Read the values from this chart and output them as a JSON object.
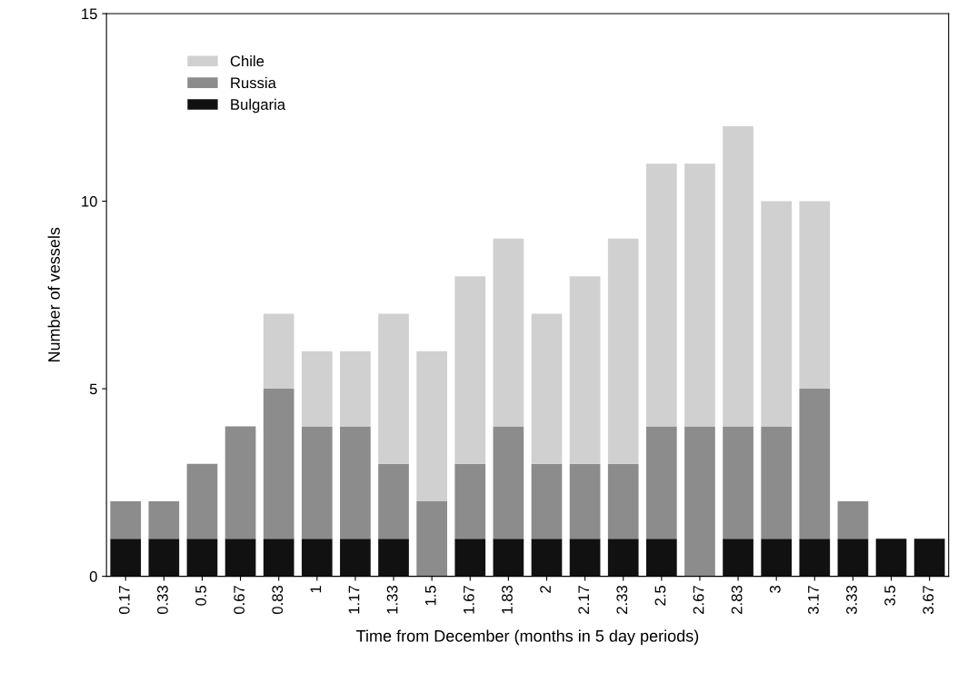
{
  "chart_data": {
    "type": "bar",
    "stacked": true,
    "xlabel": "Time from December (months in 5 day periods)",
    "ylabel": "Number of vessels",
    "categories": [
      "0.17",
      "0.33",
      "0.5",
      "0.67",
      "0.83",
      "1",
      "1.17",
      "1.33",
      "1.5",
      "1.67",
      "1.83",
      "2",
      "2.17",
      "2.33",
      "2.5",
      "2.67",
      "2.83",
      "3",
      "3.17",
      "3.33",
      "3.5",
      "3.67"
    ],
    "series": [
      {
        "name": "Bulgaria",
        "color": "#111111",
        "values": [
          1,
          1,
          1,
          1,
          1,
          1,
          1,
          1,
          0,
          1,
          1,
          1,
          1,
          1,
          1,
          0,
          1,
          1,
          1,
          1,
          1,
          1
        ]
      },
      {
        "name": "Russia",
        "color": "#8c8c8c",
        "values": [
          1,
          1,
          2,
          3,
          4,
          3,
          3,
          2,
          2,
          2,
          3,
          2,
          2,
          2,
          3,
          4,
          3,
          3,
          4,
          1,
          0,
          0
        ]
      },
      {
        "name": "Chile",
        "color": "#d0d0d0",
        "values": [
          0,
          0,
          0,
          0,
          2,
          2,
          2,
          4,
          4,
          5,
          5,
          4,
          5,
          6,
          7,
          7,
          8,
          6,
          5,
          0,
          0,
          0
        ]
      }
    ],
    "ylim": [
      0,
      15
    ],
    "yticks": [
      0,
      5,
      10,
      15
    ],
    "grid": false,
    "legend": "top left"
  }
}
